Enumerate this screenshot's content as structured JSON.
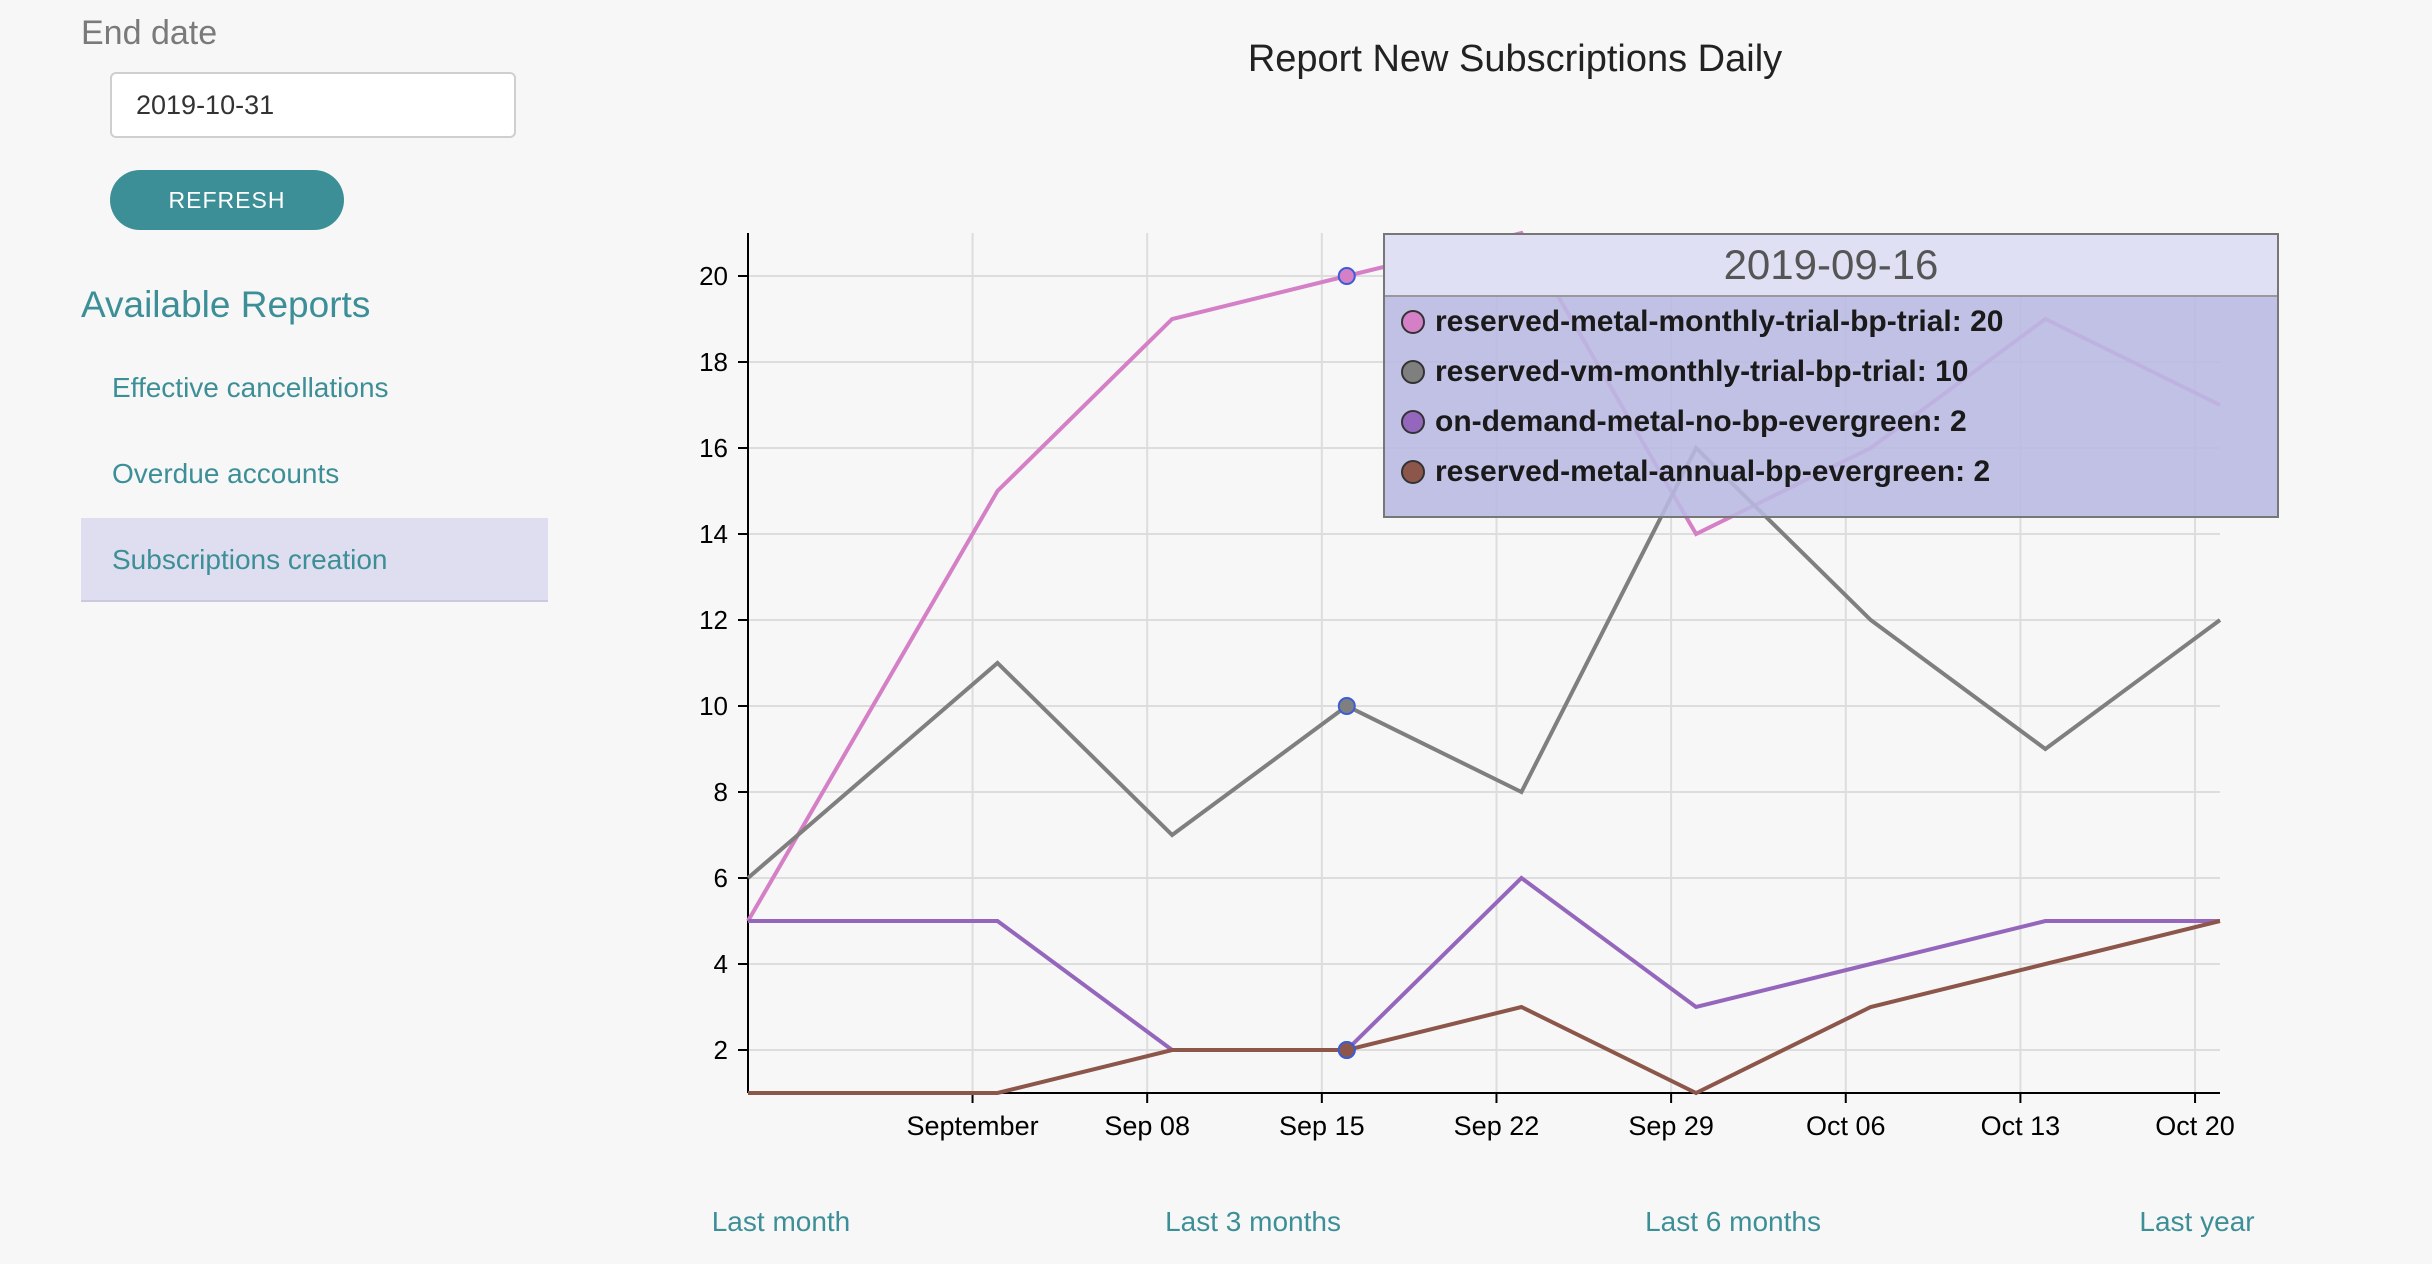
{
  "sidebar": {
    "end_date_label": "End date",
    "end_date_value": "2019-10-31",
    "refresh_label": "REFRESH",
    "available_reports_title": "Available Reports",
    "reports": [
      {
        "label": "Effective cancellations",
        "active": false
      },
      {
        "label": "Overdue accounts",
        "active": false
      },
      {
        "label": "Subscriptions creation",
        "active": true
      }
    ]
  },
  "chart_data": {
    "type": "line",
    "title": "Report New Subscriptions Daily",
    "xlabel": "",
    "ylabel": "",
    "x_ticks": [
      "September",
      "Sep 08",
      "Sep 15",
      "Sep 22",
      "Sep 29",
      "Oct 06",
      "Oct 13",
      "Oct 20"
    ],
    "y_ticks": [
      2,
      4,
      6,
      8,
      10,
      12,
      14,
      16,
      18,
      20
    ],
    "ylim": [
      1,
      21
    ],
    "grid": true,
    "x": [
      "2019-08-23",
      "2019-09-02",
      "2019-09-09",
      "2019-09-16",
      "2019-09-23",
      "2019-09-30",
      "2019-10-07",
      "2019-10-14",
      "2019-10-21"
    ],
    "series": [
      {
        "name": "reserved-metal-monthly-trial-bp-trial",
        "color": "#d47fc6",
        "values": [
          5,
          15,
          19,
          20,
          21,
          14,
          16,
          19,
          17
        ]
      },
      {
        "name": "reserved-vm-monthly-trial-bp-trial",
        "color": "#7f7f7f",
        "values": [
          6,
          11,
          7,
          10,
          8,
          16,
          12,
          9,
          12
        ]
      },
      {
        "name": "on-demand-metal-no-bp-evergreen",
        "color": "#9467bd",
        "values": [
          5,
          5,
          2,
          2,
          6,
          3,
          4,
          5,
          5
        ]
      },
      {
        "name": "reserved-metal-annual-bp-evergreen",
        "color": "#8c564b",
        "values": [
          1,
          1,
          2,
          2,
          3,
          1,
          3,
          4,
          5
        ]
      }
    ],
    "highlight_index": 3,
    "highlight_point_color": "#3a5cd8",
    "tooltip": {
      "date": "2019-09-16",
      "rows": [
        {
          "label": "reserved-metal-monthly-trial-bp-trial: 20",
          "color": "#d47fc6"
        },
        {
          "label": "reserved-vm-monthly-trial-bp-trial: 10",
          "color": "#7f7f7f"
        },
        {
          "label": "on-demand-metal-no-bp-evergreen: 2",
          "color": "#9467bd"
        },
        {
          "label": "reserved-metal-annual-bp-evergreen: 2",
          "color": "#8c564b"
        }
      ]
    }
  },
  "range_links": [
    "Last month",
    "Last 3 months",
    "Last 6 months",
    "Last year"
  ]
}
